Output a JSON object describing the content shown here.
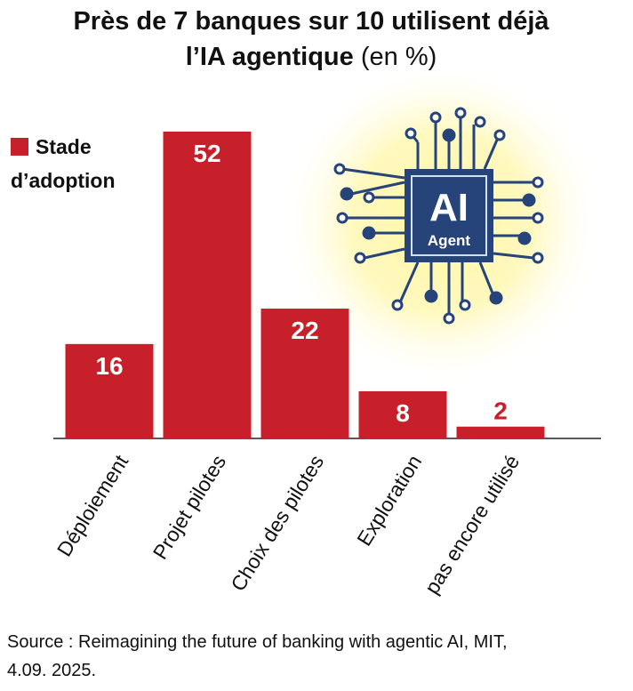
{
  "chart_data": {
    "type": "bar",
    "title": "Près de 7 banques sur 10 utilisent déjà l’IA agentique",
    "unit": "(en %)",
    "categories": [
      "Déploiement",
      "Projet pilotes",
      "Choix des pilotes",
      "Exploration",
      "pas encore utilisé"
    ],
    "series": [
      {
        "name": "Stade d’adoption",
        "color": "#c8202a",
        "values": [
          16,
          52,
          22,
          8,
          2
        ]
      }
    ],
    "icon_label": "AI",
    "icon_sublabel": "Agent",
    "source": "Source : Reimagining the future of banking with agentic AI, MIT, 4.09. 2025."
  }
}
